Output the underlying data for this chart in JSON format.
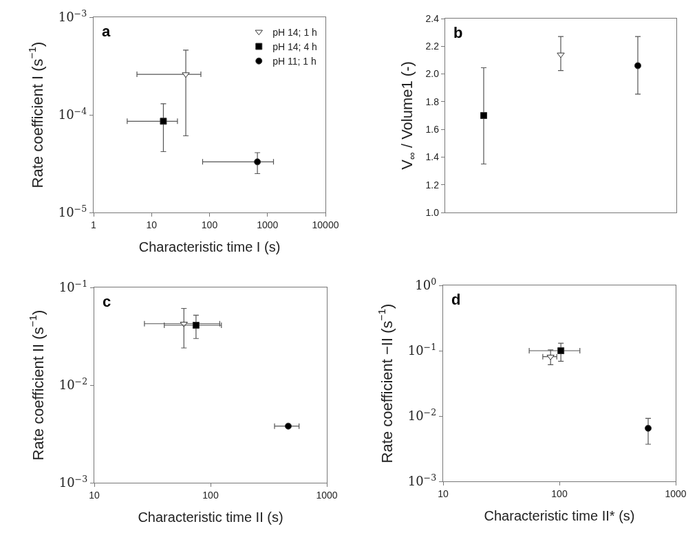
{
  "chart_data": [
    {
      "type": "scatter",
      "xlabel": "Characteristic time I (s)",
      "ylabel": "Rate coefficient I (s$^{−1}$)",
      "annotations": [
        "a"
      ],
      "log": "xy",
      "legend": "top right",
      "xlim": [
        1,
        10000
      ],
      "xticks": [
        1,
        10,
        100,
        1000,
        10000
      ],
      "ylim": [
        1e-05,
        0.001
      ],
      "yticks": [
        {
          "value": 1e-05,
          "label": "10$^{−5}$"
        },
        {
          "value": 0.0001,
          "label": "10$^{−4}$"
        },
        {
          "value": 0.001,
          "label": "10$^{−3}$"
        }
      ],
      "series": [
        {
          "name": "pH 14; 1 h",
          "color": "#ffffff",
          "marker": "triangle",
          "x": [
            39
          ],
          "values": [
            0.00026
          ],
          "errors": [
            [
              6.1e-05,
              0.00046
            ]
          ],
          "xerrors": [
            [
              5.6,
              71
            ]
          ]
        },
        {
          "name": "pH 14; 4 h",
          "color": "#000000",
          "marker": "square",
          "x": [
            16
          ],
          "values": [
            8.6e-05
          ],
          "errors": [
            [
              4.2e-05,
              0.00013
            ]
          ],
          "xerrors": [
            [
              3.8,
              28
            ]
          ]
        },
        {
          "name": "pH 11; 1 h",
          "color": "#000000",
          "marker": "circle",
          "x": [
            670
          ],
          "values": [
            3.3e-05
          ],
          "errors": [
            [
              2.5e-05,
              4.1e-05
            ]
          ],
          "xerrors": [
            [
              76,
              1270
            ]
          ]
        }
      ]
    },
    {
      "type": "scatter",
      "ylabel": "V$_{∞}$ / Volume1 (-)",
      "annotations": [
        "b"
      ],
      "tick_labels": "y",
      "categories": [
        null,
        null,
        null
      ],
      "ylim": [
        1.0,
        2.4
      ],
      "yticks": [
        {
          "value": 1.0,
          "label": "1.0"
        },
        1.2,
        1.4,
        1.6,
        1.8,
        {
          "value": 2.0,
          "label": "2.0"
        },
        2.2,
        2.4
      ],
      "series": [
        {
          "color": "#ffffff",
          "marker": "triangle",
          "values": [
            null,
            2.14,
            null
          ],
          "errors": [
            null,
            [
              2.025,
              2.27
            ],
            null
          ]
        },
        {
          "color": "#000000",
          "marker": "square",
          "values": [
            1.7,
            null,
            null
          ],
          "errors": [
            [
              1.35,
              2.045
            ],
            null,
            null
          ]
        },
        {
          "color": "#000000",
          "marker": "circle",
          "values": [
            null,
            null,
            2.06
          ],
          "errors": [
            null,
            null,
            [
              1.855,
              2.27
            ]
          ]
        }
      ]
    },
    {
      "type": "scatter",
      "xlabel": "Characteristic time II (s)",
      "ylabel": "Rate coefficient II (s$^{−1}$)",
      "annotations": [
        "c"
      ],
      "log": "xy",
      "xlim": [
        10,
        1000
      ],
      "xticks": [
        10,
        100,
        1000
      ],
      "ylim": [
        0.001,
        0.1
      ],
      "yticks": [
        {
          "value": 0.001,
          "label": "10$^{−3}$"
        },
        {
          "value": 0.01,
          "label": "10$^{−2}$"
        },
        {
          "value": 0.1,
          "label": "10$^{−1}$"
        }
      ],
      "series": [
        {
          "color": "#ffffff",
          "marker": "triangle",
          "x": [
            59
          ],
          "values": [
            0.0425
          ],
          "errors": [
            [
              0.024,
              0.061
            ]
          ],
          "xerrors": [
            [
              27,
              120
            ]
          ]
        },
        {
          "color": "#000000",
          "marker": "square",
          "x": [
            75
          ],
          "values": [
            0.041
          ],
          "errors": [
            [
              0.03,
              0.052
            ]
          ],
          "xerrors": [
            [
              40,
              124
            ]
          ]
        },
        {
          "color": "#000000",
          "marker": "circle",
          "x": [
            466
          ],
          "values": [
            0.0038
          ],
          "xerrors": [
            [
              355,
              577
            ]
          ]
        }
      ]
    },
    {
      "type": "scatter",
      "xlabel": "Characteristic time II* (s)",
      "ylabel": "Rate coefficient −II (s$^{−1}$)",
      "annotations": [
        "d"
      ],
      "log": "xy",
      "xlim": [
        10,
        1000
      ],
      "xticks": [
        10,
        100,
        1000
      ],
      "ylim": [
        0.001,
        1
      ],
      "yticks": [
        {
          "value": 0.001,
          "label": "10$^{−3}$"
        },
        {
          "value": 0.01,
          "label": "10$^{−2}$"
        },
        {
          "value": 0.1,
          "label": "10$^{−1}$"
        },
        {
          "value": 1,
          "label": "10$^{0}$"
        }
      ],
      "series": [
        {
          "color": "#ffffff",
          "marker": "triangle",
          "x": [
            84
          ],
          "values": [
            0.081
          ],
          "errors": [
            [
              0.061,
              0.103
            ]
          ],
          "xerrors": [
            [
              72,
              95
            ]
          ]
        },
        {
          "color": "#000000",
          "marker": "square",
          "x": [
            103
          ],
          "values": [
            0.1
          ],
          "errors": [
            [
              0.069,
              0.13
            ]
          ],
          "xerrors": [
            [
              55,
              150
            ]
          ]
        },
        {
          "color": "#000000",
          "marker": "circle",
          "x": [
            580
          ],
          "values": [
            0.0065
          ],
          "errors": [
            [
              0.0037,
              0.0092
            ]
          ]
        }
      ]
    }
  ]
}
